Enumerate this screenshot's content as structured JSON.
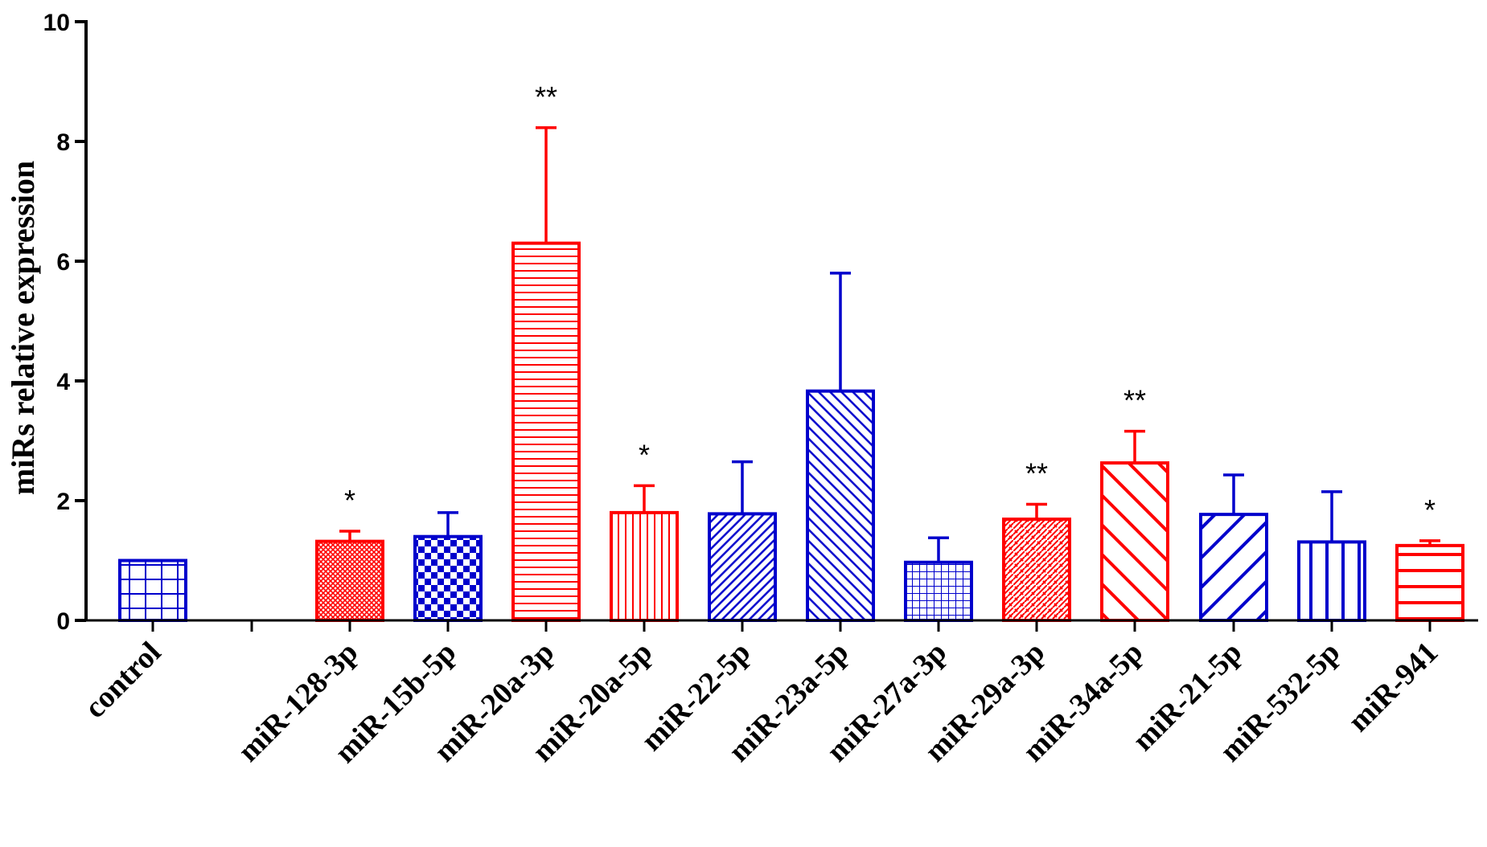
{
  "chart_data": {
    "type": "bar",
    "ylabel": "miRs relative expression",
    "xlabel": "",
    "title": "",
    "ylim": [
      0,
      10
    ],
    "yticks": [
      "0",
      "2",
      "4",
      "6",
      "8",
      "10"
    ],
    "colors": {
      "red": "#ff0000",
      "blue": "#0000cc"
    },
    "categories": [
      "control",
      "",
      "miR-128-3p",
      "miR-15b-5p",
      "miR-20a-3p",
      "miR-20a-5p",
      "miR-22-5p",
      "miR-23a-5p",
      "miR-27a-3p",
      "miR-29a-3p",
      "miR-34a-5p",
      "miR-21-5p",
      "miR-532-5p",
      "miR-941"
    ],
    "values": [
      1.0,
      null,
      1.32,
      1.4,
      6.3,
      1.8,
      1.78,
      3.83,
      0.97,
      1.69,
      2.63,
      1.77,
      1.31,
      1.25
    ],
    "error": [
      0,
      null,
      0.17,
      0.4,
      1.93,
      0.45,
      0.87,
      1.97,
      0.41,
      0.25,
      0.53,
      0.66,
      0.84,
      0.08
    ],
    "significance": [
      "",
      "",
      "*",
      "",
      "**",
      "*",
      "",
      "",
      "",
      "**",
      "**",
      "",
      "",
      "*"
    ],
    "bar_colors": [
      "blue",
      null,
      "red",
      "blue",
      "red",
      "red",
      "blue",
      "blue",
      "blue",
      "red",
      "red",
      "blue",
      "blue",
      "red"
    ],
    "patterns": [
      "grid",
      null,
      "finecross",
      "checker",
      "hlines",
      "vlines",
      "diag-dense",
      "backdiag",
      "finegrid",
      "diagcross",
      "backdiag-wide",
      "diag-wide",
      "vlines-wide",
      "hlines-wide"
    ]
  }
}
